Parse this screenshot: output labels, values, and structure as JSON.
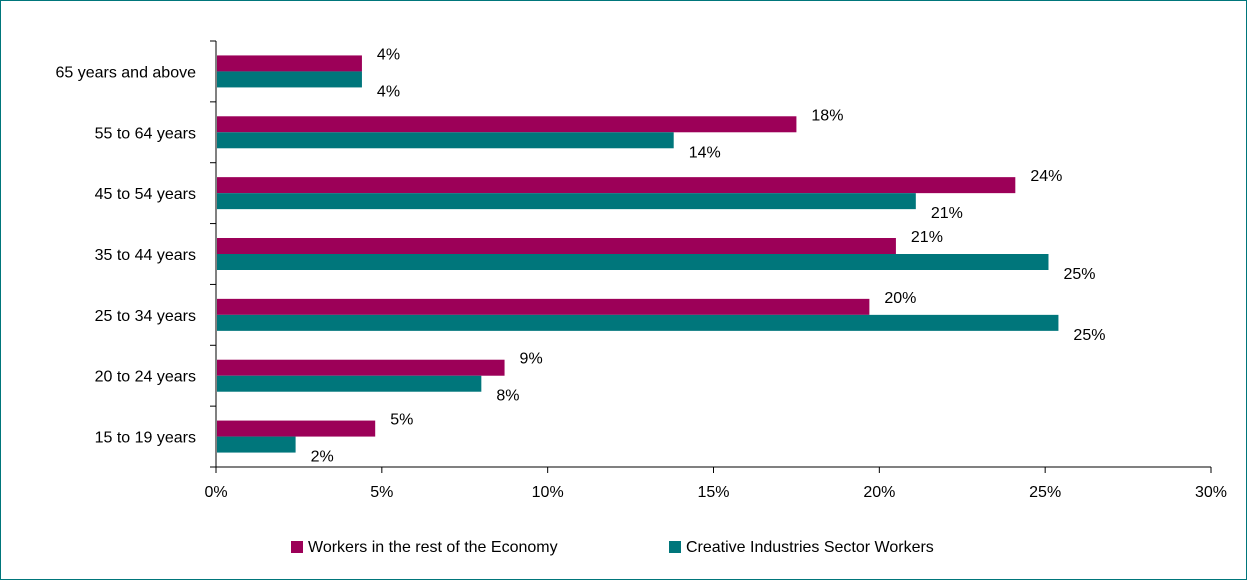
{
  "chart_data": {
    "type": "bar",
    "orientation": "horizontal",
    "title": "",
    "xlabel": "",
    "ylabel": "",
    "categories": [
      "15 to 19 years",
      "20 to 24 years",
      "25 to 34 years",
      "35 to 44 years",
      "45 to 54 years",
      "55 to 64 years",
      "65 years and above"
    ],
    "series": [
      {
        "name": "Workers in the rest of the Economy",
        "color": "#9c0058",
        "values": [
          4.8,
          8.7,
          19.7,
          20.5,
          24.1,
          17.5,
          4.4
        ],
        "labels": [
          "5%",
          "9%",
          "20%",
          "21%",
          "24%",
          "18%",
          "4%"
        ]
      },
      {
        "name": "Creative Industries Sector Workers",
        "color": "#00767b",
        "values": [
          2.4,
          8.0,
          25.4,
          25.1,
          21.1,
          13.8,
          4.4
        ],
        "labels": [
          "2%",
          "8%",
          "25%",
          "25%",
          "21%",
          "14%",
          "4%"
        ]
      }
    ],
    "xlim": [
      0,
      30
    ],
    "xticks": [
      0,
      5,
      10,
      15,
      20,
      25,
      30
    ],
    "xtick_labels": [
      "0%",
      "5%",
      "10%",
      "15%",
      "20%",
      "25%",
      "30%"
    ],
    "grid": false,
    "legend_position": "bottom"
  }
}
